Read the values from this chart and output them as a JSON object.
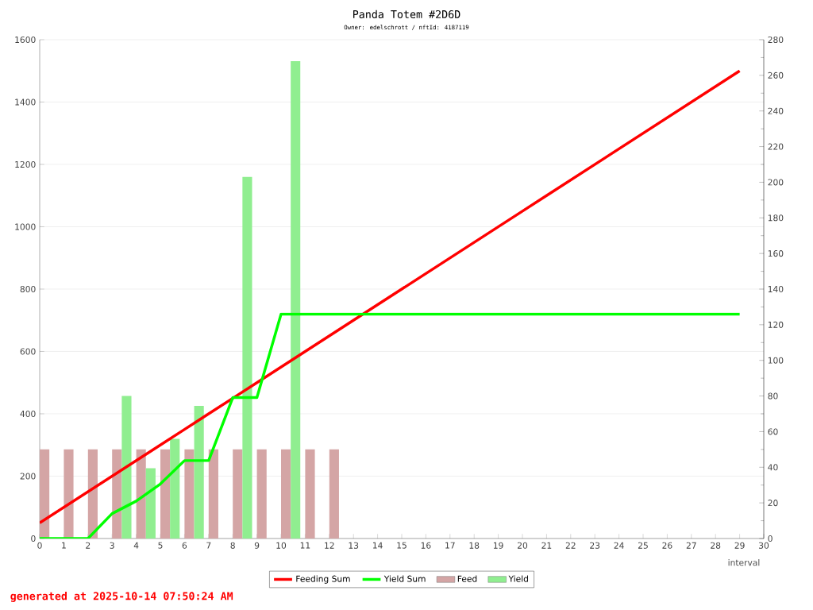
{
  "chart_data": {
    "type": "line",
    "title": "Panda Totem #2D6D",
    "subtitle": "Owner: edelschrott / nftId: 4187119",
    "xlabel": "interval",
    "annotations": [
      "generated at 2025-10-14 07:50:24 AM"
    ],
    "xlim": [
      0,
      30
    ],
    "xticks": [
      0,
      1,
      2,
      3,
      4,
      5,
      6,
      7,
      8,
      9,
      10,
      11,
      12,
      13,
      14,
      15,
      16,
      17,
      18,
      19,
      20,
      21,
      22,
      23,
      24,
      25,
      26,
      27,
      28,
      29,
      30
    ],
    "ylim": [
      0,
      1600
    ],
    "yticks": [
      0,
      200,
      400,
      600,
      800,
      1000,
      1200,
      1400,
      1600
    ],
    "y2lim": [
      0,
      280
    ],
    "y2ticks": [
      0,
      20,
      40,
      60,
      80,
      100,
      120,
      140,
      160,
      180,
      200,
      220,
      240,
      260,
      280
    ],
    "grid": "y",
    "legend": "bottom",
    "marker": "none",
    "series": [
      {
        "name": "Feeding Sum",
        "color": "#ff0000",
        "x": [
          0,
          1,
          2,
          3,
          4,
          5,
          6,
          7,
          8,
          9,
          10,
          11,
          12,
          13,
          14,
          15,
          16,
          17,
          18,
          19,
          20,
          21,
          22,
          23,
          24,
          25,
          26,
          27,
          28,
          29
        ],
        "values": [
          50,
          100,
          150,
          200,
          250,
          300,
          350,
          400,
          450,
          500,
          550,
          600,
          650,
          700,
          750,
          800,
          850,
          900,
          950,
          1000,
          1050,
          1100,
          1150,
          1200,
          1250,
          1300,
          1350,
          1400,
          1450,
          1500
        ]
      },
      {
        "name": "Yield Sum",
        "color": "#00ff00",
        "x": [
          0,
          1,
          2,
          3,
          4,
          5,
          6,
          7,
          8,
          9,
          10,
          11,
          12,
          13,
          14,
          15,
          16,
          17,
          18,
          19,
          20,
          21,
          22,
          23,
          24,
          25,
          26,
          27,
          28,
          29
        ],
        "values": [
          0,
          0,
          0,
          80,
          120,
          175,
          250,
          250,
          452,
          452,
          720,
          720,
          720,
          720,
          720,
          720,
          720,
          720,
          720,
          720,
          720,
          720,
          720,
          720,
          720,
          720,
          720,
          720,
          720,
          720
        ]
      },
      {
        "name": "Feed",
        "type": "bar",
        "axis": "y2",
        "color": "#d4a5a5",
        "x": [
          0.2,
          1.2,
          2.2,
          3.2,
          4.2,
          5.2,
          6.2,
          7.2,
          8.2,
          9.2,
          10.2,
          11.2,
          12.2
        ],
        "values": [
          50,
          50,
          50,
          50,
          50,
          50,
          50,
          50,
          50,
          50,
          50,
          50,
          50
        ]
      },
      {
        "name": "Yield",
        "type": "bar",
        "axis": "y2",
        "color": "#90ee90",
        "x": [
          3.6,
          4.6,
          5.6,
          6.6,
          8.6,
          10.6
        ],
        "values": [
          80,
          39.5,
          56,
          74.5,
          203,
          268
        ]
      }
    ]
  }
}
